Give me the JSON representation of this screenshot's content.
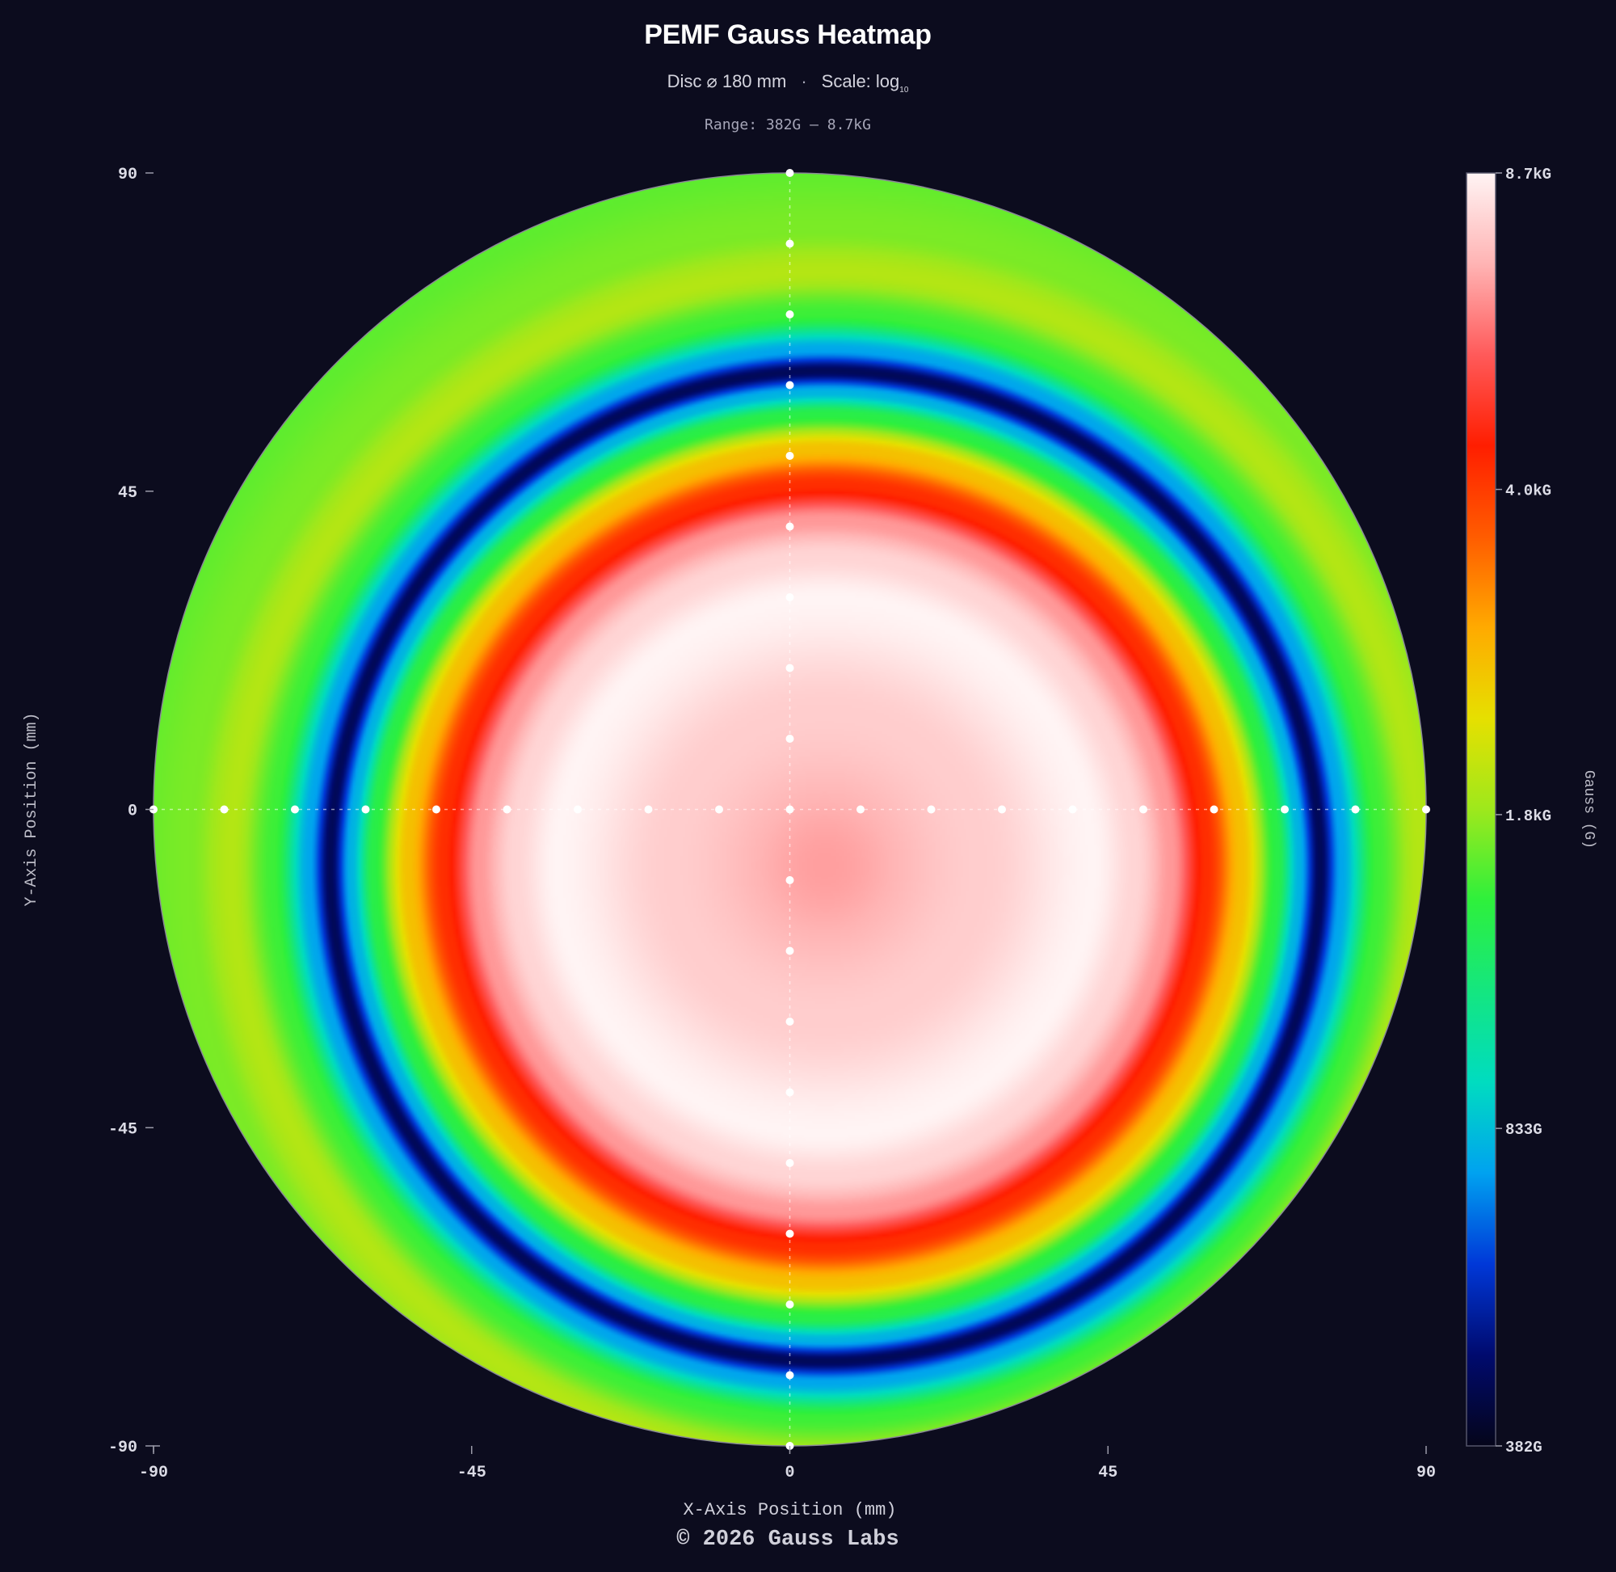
{
  "header": {
    "title": "PEMF Gauss Heatmap",
    "subtitle_disc": "Disc  ⌀ 180 mm",
    "subtitle_sep": "·",
    "subtitle_scale": "Scale: log",
    "subtitle_scale_sub": "10",
    "range": "Range: 382G — 8.7kG"
  },
  "footer": {
    "credit": "© 2026 Gauss Labs"
  },
  "colors": {
    "background": "#0c0c1e",
    "colormap": [
      "#05051a",
      "#000a6e",
      "#0038d8",
      "#00a2f0",
      "#00dcc0",
      "#14e680",
      "#2ef03c",
      "#9ee81c",
      "#e6e000",
      "#ffaa00",
      "#ff5c00",
      "#ff1e00",
      "#ff5a5a",
      "#ffb4b4",
      "#fff4f4"
    ]
  },
  "chart_data": {
    "type": "heatmap",
    "shape": "disc",
    "xlabel": "X-Axis Position (mm)",
    "ylabel": "Y-Axis Position (mm)",
    "xlim": [
      -90,
      90
    ],
    "ylim": [
      -90,
      90
    ],
    "xticks": [
      -90,
      -45,
      0,
      45,
      90
    ],
    "yticks": [
      -90,
      -45,
      0,
      45,
      90
    ],
    "radius_mm": 90,
    "colorbar": {
      "label": "Gauss (G)",
      "scale": "log",
      "min": 382,
      "max": 8700,
      "ticks": [
        {
          "value": 382,
          "label": "382G"
        },
        {
          "value": 833,
          "label": "833G"
        },
        {
          "value": 1800,
          "label": "1.8kG"
        },
        {
          "value": 4000,
          "label": "4.0kG"
        },
        {
          "value": 8700,
          "label": "8.7kG"
        }
      ]
    },
    "field_center_mm": [
      5,
      -8
    ],
    "radial_profile": [
      {
        "r": 0,
        "gauss": 6600
      },
      {
        "r": 22,
        "gauss": 7600
      },
      {
        "r": 38,
        "gauss": 8700
      },
      {
        "r": 44,
        "gauss": 7800
      },
      {
        "r": 49,
        "gauss": 6500
      },
      {
        "r": 54,
        "gauss": 4200
      },
      {
        "r": 59,
        "gauss": 2600
      },
      {
        "r": 64,
        "gauss": 1400
      },
      {
        "r": 67,
        "gauss": 800
      },
      {
        "r": 70,
        "gauss": 450
      },
      {
        "r": 73,
        "gauss": 760
      },
      {
        "r": 78,
        "gauss": 1500
      },
      {
        "r": 84,
        "gauss": 1950
      },
      {
        "r": 90,
        "gauss": 1700
      },
      {
        "r": 100,
        "gauss": 1600
      }
    ],
    "sample_points": {
      "x": [
        -90,
        -80,
        -70,
        -60,
        -50,
        -40,
        -30,
        -20,
        -10,
        0,
        10,
        20,
        30,
        40,
        50,
        60,
        70,
        80,
        90
      ],
      "y": [
        90,
        80,
        70,
        60,
        50,
        40,
        30,
        20,
        10,
        0,
        -10,
        -20,
        -30,
        -40,
        -50,
        -60,
        -70,
        -80,
        -90
      ]
    }
  }
}
